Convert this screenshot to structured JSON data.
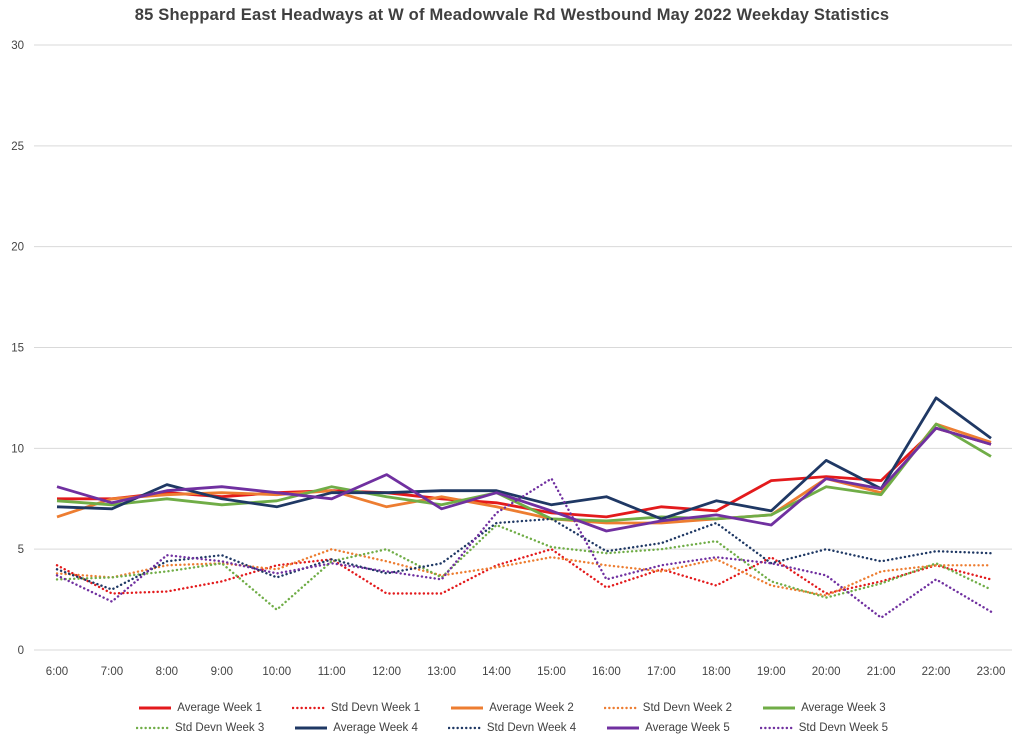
{
  "title": "85 Sheppard East Headways at W of Meadowvale Rd Westbound May 2022 Weekday Statistics",
  "chart_data": {
    "type": "line",
    "title": "85 Sheppard East Headways at W of Meadowvale Rd Westbound May 2022 Weekday Statistics",
    "xlabel": "",
    "ylabel": "",
    "ylim": [
      0,
      30
    ],
    "yticks": [
      0,
      5,
      10,
      15,
      20,
      25,
      30
    ],
    "grid": true,
    "legend_position": "bottom",
    "x": [
      "6:00",
      "7:00",
      "8:00",
      "9:00",
      "10:00",
      "11:00",
      "12:00",
      "13:00",
      "14:00",
      "15:00",
      "16:00",
      "17:00",
      "18:00",
      "19:00",
      "20:00",
      "21:00",
      "22:00",
      "23:00"
    ],
    "series": [
      {
        "name": "Average Week 1",
        "color": "#e31a1c",
        "style": "solid",
        "values": [
          7.5,
          7.5,
          7.8,
          7.6,
          7.8,
          7.9,
          7.8,
          7.5,
          7.3,
          6.8,
          6.6,
          7.1,
          6.9,
          8.4,
          8.6,
          8.4,
          11.0,
          10.2
        ]
      },
      {
        "name": "Std Devn Week 1",
        "color": "#e31a1c",
        "style": "dotted",
        "values": [
          4.2,
          2.8,
          2.9,
          3.4,
          4.2,
          4.5,
          2.8,
          2.8,
          4.2,
          5.0,
          3.1,
          4.0,
          3.2,
          4.6,
          2.8,
          3.4,
          4.2,
          3.5
        ]
      },
      {
        "name": "Average Week 2",
        "color": "#ed7d31",
        "style": "solid",
        "values": [
          6.6,
          7.5,
          7.7,
          7.8,
          7.7,
          7.9,
          7.1,
          7.6,
          7.1,
          6.5,
          6.3,
          6.3,
          6.5,
          6.7,
          8.5,
          7.8,
          11.2,
          10.3
        ]
      },
      {
        "name": "Std Devn Week 2",
        "color": "#ed7d31",
        "style": "dotted",
        "values": [
          3.8,
          3.6,
          4.2,
          4.3,
          4.0,
          5.0,
          4.4,
          3.7,
          4.1,
          4.6,
          4.2,
          3.9,
          4.5,
          3.2,
          2.7,
          3.9,
          4.2,
          4.2
        ]
      },
      {
        "name": "Average Week 3",
        "color": "#70ad47",
        "style": "solid",
        "values": [
          7.4,
          7.2,
          7.5,
          7.2,
          7.4,
          8.1,
          7.6,
          7.2,
          7.8,
          6.5,
          6.4,
          6.6,
          6.5,
          6.7,
          8.1,
          7.7,
          11.2,
          9.6
        ]
      },
      {
        "name": "Std Devn Week 3",
        "color": "#70ad47",
        "style": "dotted",
        "values": [
          3.5,
          3.6,
          3.9,
          4.3,
          2.0,
          4.4,
          5.0,
          3.6,
          6.2,
          5.1,
          4.8,
          5.0,
          5.4,
          3.4,
          2.6,
          3.3,
          4.3,
          3.0
        ]
      },
      {
        "name": "Average Week 4",
        "color": "#1f3864",
        "style": "solid",
        "values": [
          7.1,
          7.0,
          8.2,
          7.5,
          7.1,
          7.8,
          7.8,
          7.9,
          7.9,
          7.2,
          7.6,
          6.5,
          7.4,
          6.9,
          9.4,
          8.0,
          12.5,
          10.5
        ]
      },
      {
        "name": "Std Devn Week 4",
        "color": "#1f3864",
        "style": "dotted",
        "values": [
          4.0,
          3.0,
          4.4,
          4.7,
          3.6,
          4.5,
          3.8,
          4.3,
          6.3,
          6.5,
          4.9,
          5.3,
          6.3,
          4.3,
          5.0,
          4.4,
          4.9,
          4.8
        ]
      },
      {
        "name": "Average Week 5",
        "color": "#7030a0",
        "style": "solid",
        "values": [
          8.1,
          7.3,
          7.9,
          8.1,
          7.8,
          7.5,
          8.7,
          7.0,
          7.8,
          6.9,
          5.9,
          6.4,
          6.7,
          6.2,
          8.5,
          8.0,
          11.0,
          10.2
        ]
      },
      {
        "name": "Std Devn Week 5",
        "color": "#7030a0",
        "style": "dotted",
        "values": [
          3.7,
          2.4,
          4.7,
          4.4,
          3.8,
          4.3,
          3.9,
          3.5,
          6.8,
          8.5,
          3.5,
          4.2,
          4.6,
          4.3,
          3.7,
          1.6,
          3.5,
          1.9
        ]
      }
    ]
  }
}
